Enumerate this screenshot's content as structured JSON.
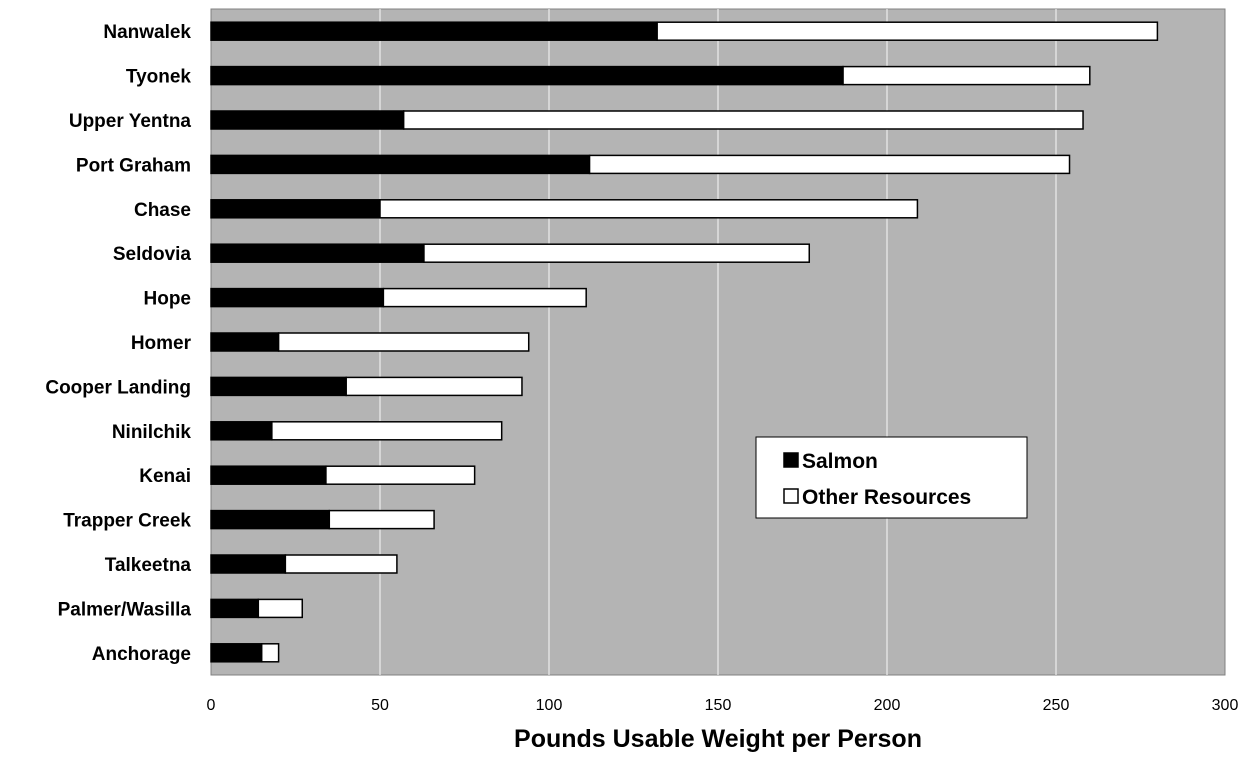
{
  "chart_data": {
    "type": "bar",
    "orientation": "horizontal",
    "stacked": true,
    "xlabel": "Pounds Usable Weight per Person",
    "xlim": [
      0,
      300
    ],
    "xticks": [
      0,
      50,
      100,
      150,
      200,
      250,
      300
    ],
    "grid": "vertical",
    "legend_position": "center-right",
    "categories": [
      "Nanwalek",
      "Tyonek",
      "Upper Yentna",
      "Port Graham",
      "Chase",
      "Seldovia",
      "Hope",
      "Homer",
      "Cooper Landing",
      "Ninilchik",
      "Kenai",
      "Trapper Creek",
      "Talkeetna",
      "Palmer/Wasilla",
      "Anchorage"
    ],
    "series": [
      {
        "name": "Salmon",
        "color": "#000000",
        "values": [
          132,
          187,
          57,
          112,
          50,
          63,
          51,
          20,
          40,
          18,
          34,
          35,
          22,
          14,
          15
        ]
      },
      {
        "name": "Other Resources",
        "color": "#ffffff",
        "values": [
          148,
          73,
          201,
          142,
          159,
          114,
          60,
          74,
          52,
          68,
          44,
          31,
          33,
          13,
          5
        ]
      }
    ],
    "plot_background": "#b4b4b4"
  }
}
